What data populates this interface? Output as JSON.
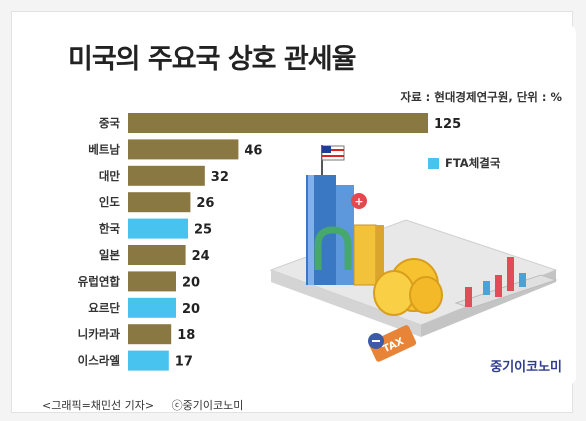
{
  "title": "미국의 주요국 상호 관세율",
  "source": "자료 : 현대경제연구원, 단위 : %",
  "legend": {
    "label": "FTA체결국"
  },
  "brand": "중기이코노미",
  "caption": {
    "credit": "<그래픽=채민선 기자>",
    "copyright": "ⓒ중기이코노미"
  },
  "colors": {
    "regular": "#8a7843",
    "fta": "#48c2ee"
  },
  "chart_data": {
    "type": "bar",
    "orientation": "horizontal",
    "title": "미국의 주요국 상호 관세율",
    "unit": "%",
    "categories": [
      "중국",
      "베트남",
      "대만",
      "인도",
      "한국",
      "일본",
      "유럽연합",
      "요르단",
      "니카라과",
      "이스라엘"
    ],
    "values": [
      125,
      46,
      32,
      26,
      25,
      24,
      20,
      20,
      18,
      17
    ],
    "fta": [
      false,
      false,
      false,
      false,
      true,
      false,
      false,
      true,
      false,
      true
    ],
    "legend": [
      "FTA체결국"
    ],
    "xlim": [
      0,
      125
    ],
    "grid": false
  }
}
